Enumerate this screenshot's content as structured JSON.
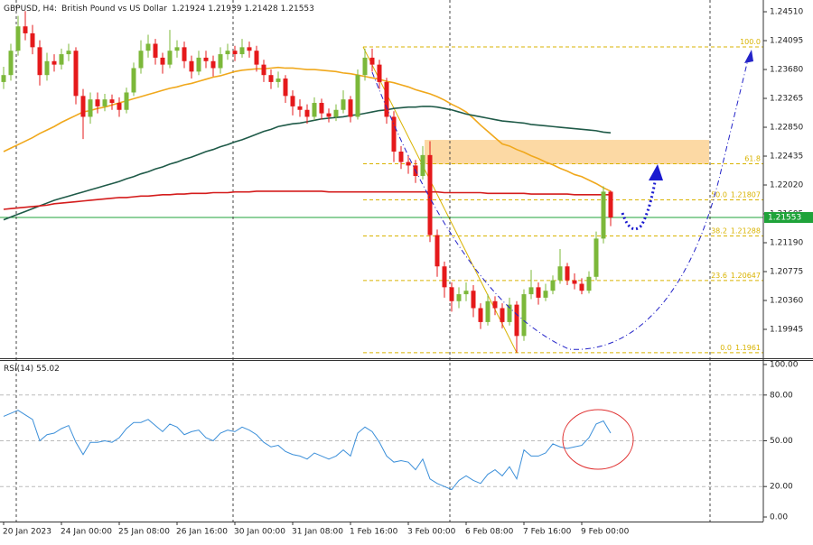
{
  "chart_data": [
    {
      "type": "candlestick",
      "symbol": "GBPUSD, H4:",
      "description": "British Pound vs US Dollar",
      "categories": [
        "20 Jan 2023",
        null,
        null,
        null,
        null,
        null,
        null,
        null,
        "24 Jan 00:00",
        null,
        null,
        null,
        null,
        null,
        null,
        null,
        "25 Jan 08:00",
        null,
        null,
        null,
        null,
        null,
        null,
        null,
        "26 Jan 16:00",
        null,
        null,
        null,
        null,
        null,
        null,
        null,
        "30 Jan 00:00",
        null,
        null,
        null,
        null,
        null,
        null,
        null,
        "31 Jan 08:00",
        null,
        null,
        null,
        null,
        null,
        null,
        null,
        "1 Feb 16:00",
        null,
        null,
        null,
        null,
        null,
        null,
        null,
        "3 Feb 00:00",
        null,
        null,
        null,
        null,
        null,
        null,
        null,
        "6 Feb 08:00",
        null,
        null,
        null,
        null,
        null,
        null,
        null,
        "7 Feb 16:00",
        null,
        null,
        null,
        null,
        null,
        null,
        null,
        "9 Feb 00:00",
        null,
        null,
        null,
        null
      ],
      "ohlc": [
        [
          1.235,
          1.2372,
          1.234,
          1.236
        ],
        [
          1.236,
          1.2405,
          1.2352,
          1.2395
        ],
        [
          1.2395,
          1.2445,
          1.2388,
          1.243
        ],
        [
          1.243,
          1.2452,
          1.241,
          1.242
        ],
        [
          1.242,
          1.2432,
          1.239,
          1.24
        ],
        [
          1.24,
          1.241,
          1.2345,
          1.236
        ],
        [
          1.236,
          1.2392,
          1.2352,
          1.238
        ],
        [
          1.238,
          1.239,
          1.2365,
          1.2375
        ],
        [
          1.2375,
          1.2398,
          1.2368,
          1.239
        ],
        [
          1.239,
          1.2405,
          1.238,
          1.2395
        ],
        [
          1.2395,
          1.24,
          1.2318,
          1.233
        ],
        [
          1.233,
          1.234,
          1.2268,
          1.23
        ],
        [
          1.23,
          1.2335,
          1.229,
          1.2325
        ],
        [
          1.2325,
          1.2335,
          1.2305,
          1.2315
        ],
        [
          1.2315,
          1.2333,
          1.2308,
          1.2325
        ],
        [
          1.2325,
          1.2332,
          1.231,
          1.232
        ],
        [
          1.232,
          1.2328,
          1.23,
          1.231
        ],
        [
          1.231,
          1.2342,
          1.2305,
          1.2335
        ],
        [
          1.2335,
          1.2378,
          1.233,
          1.237
        ],
        [
          1.237,
          1.241,
          1.2362,
          1.2395
        ],
        [
          1.2395,
          1.2418,
          1.2385,
          1.2405
        ],
        [
          1.2405,
          1.2412,
          1.2375,
          1.2385
        ],
        [
          1.2385,
          1.2392,
          1.2362,
          1.2375
        ],
        [
          1.2375,
          1.2425,
          1.237,
          1.2395
        ],
        [
          1.2395,
          1.241,
          1.2385,
          1.24
        ],
        [
          1.24,
          1.2408,
          1.237,
          1.238
        ],
        [
          1.238,
          1.2388,
          1.2355,
          1.2365
        ],
        [
          1.2365,
          1.2395,
          1.236,
          1.2385
        ],
        [
          1.2385,
          1.2395,
          1.237,
          1.238
        ],
        [
          1.238,
          1.2388,
          1.2358,
          1.237
        ],
        [
          1.237,
          1.24,
          1.2362,
          1.239
        ],
        [
          1.239,
          1.2405,
          1.2382,
          1.2395
        ],
        [
          1.2395,
          1.2402,
          1.238,
          1.239
        ],
        [
          1.239,
          1.2412,
          1.2385,
          1.24
        ],
        [
          1.24,
          1.2408,
          1.2385,
          1.2395
        ],
        [
          1.2395,
          1.2402,
          1.2365,
          1.2375
        ],
        [
          1.2375,
          1.2382,
          1.235,
          1.236
        ],
        [
          1.236,
          1.2368,
          1.234,
          1.235
        ],
        [
          1.235,
          1.2365,
          1.2342,
          1.2355
        ],
        [
          1.2355,
          1.236,
          1.232,
          1.233
        ],
        [
          1.233,
          1.2338,
          1.2302,
          1.2315
        ],
        [
          1.2315,
          1.2325,
          1.23,
          1.231
        ],
        [
          1.231,
          1.2318,
          1.229,
          1.23
        ],
        [
          1.23,
          1.2328,
          1.2295,
          1.232
        ],
        [
          1.232,
          1.2326,
          1.2296,
          1.2305
        ],
        [
          1.2305,
          1.2312,
          1.2292,
          1.23
        ],
        [
          1.23,
          1.2318,
          1.2294,
          1.231
        ],
        [
          1.231,
          1.2338,
          1.2305,
          1.2325
        ],
        [
          1.2325,
          1.233,
          1.2292,
          1.23
        ],
        [
          1.23,
          1.2368,
          1.2296,
          1.236
        ],
        [
          1.236,
          1.2398,
          1.2352,
          1.2385
        ],
        [
          1.2385,
          1.2398,
          1.2365,
          1.2375
        ],
        [
          1.2375,
          1.2382,
          1.234,
          1.235
        ],
        [
          1.235,
          1.2356,
          1.229,
          1.23
        ],
        [
          1.23,
          1.2308,
          1.2235,
          1.225
        ],
        [
          1.225,
          1.2258,
          1.2225,
          1.2235
        ],
        [
          1.2235,
          1.2245,
          1.2218,
          1.223
        ],
        [
          1.223,
          1.2238,
          1.2205,
          1.2215
        ],
        [
          1.2215,
          1.2258,
          1.221,
          1.2245
        ],
        [
          1.2245,
          1.2265,
          1.212,
          1.213
        ],
        [
          1.213,
          1.2138,
          1.207,
          1.2085
        ],
        [
          1.2085,
          1.2092,
          1.204,
          1.2055
        ],
        [
          1.2055,
          1.2062,
          1.202,
          1.2035
        ],
        [
          1.2035,
          1.2055,
          1.2025,
          1.2045
        ],
        [
          1.2045,
          1.2062,
          1.2035,
          1.205
        ],
        [
          1.205,
          1.2058,
          1.2012,
          1.2025
        ],
        [
          1.2025,
          1.2032,
          1.1995,
          1.2005
        ],
        [
          1.2005,
          1.2045,
          1.2,
          1.2035
        ],
        [
          1.2035,
          1.2042,
          1.2015,
          1.2025
        ],
        [
          1.2025,
          1.2032,
          1.1996,
          1.2005
        ],
        [
          1.2005,
          1.204,
          1.2,
          1.203
        ],
        [
          1.203,
          1.2035,
          1.1961,
          1.1985
        ],
        [
          1.1985,
          1.2052,
          1.1978,
          1.2045
        ],
        [
          1.2045,
          1.208,
          1.2038,
          1.2055
        ],
        [
          1.2055,
          1.2062,
          1.203,
          1.204
        ],
        [
          1.204,
          1.206,
          1.2035,
          1.205
        ],
        [
          1.205,
          1.2072,
          1.2045,
          1.2065
        ],
        [
          1.2065,
          1.211,
          1.206,
          1.2085
        ],
        [
          1.2085,
          1.209,
          1.2058,
          1.2065
        ],
        [
          1.2065,
          1.2075,
          1.2052,
          1.206
        ],
        [
          1.206,
          1.2068,
          1.2045,
          1.205
        ],
        [
          1.205,
          1.2078,
          1.2046,
          1.207
        ],
        [
          1.207,
          1.2135,
          1.2065,
          1.2125
        ],
        [
          1.2125,
          1.22,
          1.2118,
          1.21924
        ],
        [
          1.21924,
          1.21939,
          1.21428,
          1.21553
        ]
      ],
      "up_color": "#7cb83a",
      "down_color": "#e5191b",
      "series": [
        {
          "color": "#f0a81c",
          "values": [
            1.225,
            1.2255,
            1.226,
            1.2265,
            1.227,
            1.2276,
            1.2281,
            1.2286,
            1.2292,
            1.2297,
            1.2302,
            1.2307,
            1.2309,
            1.2312,
            1.2314,
            1.2317,
            1.232,
            1.2323,
            1.2326,
            1.2329,
            1.2332,
            1.2335,
            1.2338,
            1.2341,
            1.2343,
            1.2346,
            1.2348,
            1.2351,
            1.2354,
            1.2357,
            1.2359,
            1.2362,
            1.2365,
            1.2367,
            1.2368,
            1.2369,
            1.2369,
            1.237,
            1.2371,
            1.237,
            1.237,
            1.2369,
            1.2368,
            1.2368,
            1.2367,
            1.2366,
            1.2365,
            1.2363,
            1.2362,
            1.236,
            1.2358,
            1.2356,
            1.2354,
            1.2351,
            1.2349,
            1.2346,
            1.2343,
            1.2339,
            1.2336,
            1.2333,
            1.2329,
            1.2324,
            1.2318,
            1.2313,
            1.2307,
            1.2298,
            1.2288,
            1.2279,
            1.227,
            1.2261,
            1.2258,
            1.2253,
            1.2249,
            1.2244,
            1.224,
            1.2235,
            1.2231,
            1.2226,
            1.2222,
            1.2217,
            1.2214,
            1.2209,
            1.2204,
            1.2198,
            1.2193
          ]
        },
        {
          "color": "#1f5a48",
          "values": [
            1.2152,
            1.2156,
            1.216,
            1.2164,
            1.2168,
            1.2172,
            1.2176,
            1.218,
            1.2183,
            1.2186,
            1.2189,
            1.2192,
            1.2195,
            1.2198,
            1.2201,
            1.2204,
            1.2207,
            1.2211,
            1.2214,
            1.2218,
            1.2221,
            1.2225,
            1.2228,
            1.2232,
            1.2235,
            1.2239,
            1.2242,
            1.2246,
            1.225,
            1.2253,
            1.2257,
            1.226,
            1.2264,
            1.2267,
            1.2271,
            1.2275,
            1.2279,
            1.2282,
            1.2286,
            1.2288,
            1.229,
            1.2291,
            1.2293,
            1.2295,
            1.2297,
            1.2298,
            1.2299,
            1.23,
            1.2302,
            1.2303,
            1.2305,
            1.2307,
            1.2309,
            1.231,
            1.2312,
            1.2313,
            1.2314,
            1.2314,
            1.2315,
            1.2315,
            1.2314,
            1.2312,
            1.231,
            1.2307,
            1.2304,
            1.2302,
            1.23,
            1.2298,
            1.2296,
            1.2294,
            1.2293,
            1.2292,
            1.2291,
            1.2289,
            1.2288,
            1.2287,
            1.2286,
            1.2285,
            1.2284,
            1.2283,
            1.2282,
            1.2281,
            1.228,
            1.2278,
            1.2277
          ]
        },
        {
          "color": "#d41c1c",
          "values": [
            1.2167,
            1.2168,
            1.2169,
            1.217,
            1.2171,
            1.2172,
            1.2173,
            1.2175,
            1.2176,
            1.2177,
            1.2178,
            1.2179,
            1.218,
            1.2181,
            1.2182,
            1.2183,
            1.2184,
            1.2184,
            1.2185,
            1.2186,
            1.2186,
            1.2187,
            1.2188,
            1.2188,
            1.2189,
            1.2189,
            1.219,
            1.219,
            1.219,
            1.2191,
            1.2191,
            1.2191,
            1.2192,
            1.2192,
            1.2192,
            1.2193,
            1.2193,
            1.2193,
            1.2193,
            1.2193,
            1.2193,
            1.2193,
            1.2193,
            1.2193,
            1.2193,
            1.2192,
            1.2192,
            1.2192,
            1.2192,
            1.2192,
            1.2192,
            1.2192,
            1.2192,
            1.2192,
            1.2192,
            1.2192,
            1.2192,
            1.2192,
            1.2192,
            1.2192,
            1.2192,
            1.2191,
            1.2191,
            1.2191,
            1.2191,
            1.2191,
            1.2191,
            1.219,
            1.219,
            1.219,
            1.219,
            1.219,
            1.219,
            1.2189,
            1.2189,
            1.2189,
            1.2189,
            1.2189,
            1.2189,
            1.2188,
            1.2188,
            1.2188,
            1.2188,
            1.2188,
            1.2188
          ]
        }
      ],
      "ylim": [
        1.19556,
        1.24679
      ],
      "yticks": [
        {
          "value": 1.2451,
          "label": "1.24510"
        },
        1.24095,
        {
          "value": 1.2368,
          "label": "1.23680"
        },
        1.23265,
        {
          "value": 1.2285,
          "label": "1.22850"
        },
        1.22435,
        {
          "value": 1.2202,
          "label": "1.22020"
        },
        1.21605,
        {
          "value": 1.2119,
          "label": "1.21190"
        },
        1.20775,
        {
          "value": 1.2036,
          "label": "1.20360"
        },
        1.19945
      ],
      "last_price": 1.21553,
      "last_price_color": "#1fa33a",
      "fibonacci": {
        "color": "#d9b300",
        "levels": [
          {
            "label": "100.0",
            "price": 1.24004,
            "show_price": false
          },
          {
            "label": "61.8",
            "price": 1.22325,
            "show_price": false
          },
          {
            "label": "50.0",
            "price": 1.21807,
            "show_price": true
          },
          {
            "label": "38.2",
            "price": 1.21288,
            "show_price": true
          },
          {
            "label": "23.6",
            "price": 1.20647,
            "show_price": true
          },
          {
            "label": "0.0",
            "price": 1.1961,
            "show_price": true
          }
        ]
      },
      "zone": {
        "color": "#fcd9a4",
        "top": 1.22668,
        "bottom": 1.22318
      }
    },
    {
      "type": "line",
      "title": "RSI(14)",
      "color": "#3b8fd9",
      "values": [
        66,
        68,
        70,
        67,
        64,
        50,
        54,
        55,
        58,
        60,
        49,
        41,
        49,
        49,
        50,
        49,
        52,
        58,
        62,
        62,
        64,
        60,
        56,
        61,
        59,
        54,
        56,
        57,
        52,
        50,
        55,
        57,
        56,
        59,
        57,
        54,
        49,
        46,
        47,
        43,
        41,
        40,
        38,
        42,
        40,
        38,
        40,
        44,
        40,
        55,
        59,
        56,
        49,
        40,
        36,
        37,
        36,
        31,
        38,
        25,
        22,
        20,
        18,
        24,
        27,
        24,
        22,
        28,
        31,
        27,
        33,
        25,
        44,
        40,
        40,
        42,
        48,
        46,
        45,
        46,
        47,
        52,
        61,
        63,
        55.02
      ],
      "ylim": [
        0,
        100
      ],
      "yticks": [
        {
          "value": 100,
          "label": "100.00"
        },
        {
          "value": 80,
          "label": "80.00"
        },
        {
          "value": 50,
          "label": "50.00"
        },
        {
          "value": 20,
          "label": "20.00"
        },
        {
          "value": 0,
          "label": "0.00"
        }
      ]
    }
  ]
}
